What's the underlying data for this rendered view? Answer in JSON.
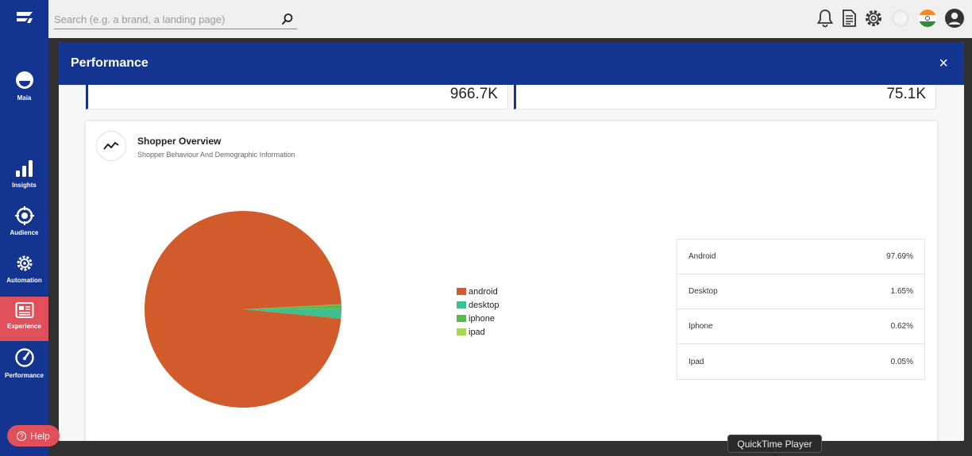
{
  "search": {
    "placeholder": "Search (e.g. a brand, a landing page)"
  },
  "sidebar": {
    "items": [
      {
        "label": "Maia",
        "icon": "maia-icon"
      },
      {
        "label": "Insights",
        "icon": "bar-chart-icon"
      },
      {
        "label": "Audience",
        "icon": "target-icon"
      },
      {
        "label": "Automation",
        "icon": "gear-icon"
      },
      {
        "label": "Experience",
        "icon": "layout-icon",
        "active": true
      },
      {
        "label": "Performance",
        "icon": "gauge-icon"
      }
    ]
  },
  "help": {
    "label": "Help"
  },
  "modal": {
    "title": "Performance",
    "close": "×",
    "stats": [
      "966.7K",
      "75.1K"
    ],
    "overview": {
      "title": "Shopper Overview",
      "subtitle": "Shopper Behaviour And Demographic Information"
    },
    "legend": [
      {
        "label": "android",
        "color": "#d15b2a"
      },
      {
        "label": "desktop",
        "color": "#3fbf8f"
      },
      {
        "label": "iphone",
        "color": "#58bb4d"
      },
      {
        "label": "ipad",
        "color": "#a9d657"
      }
    ],
    "table": [
      {
        "label": "Android",
        "value": "97.69%"
      },
      {
        "label": "Desktop",
        "value": "1.65%"
      },
      {
        "label": "Iphone",
        "value": "0.62%"
      },
      {
        "label": "Ipad",
        "value": "0.05%"
      }
    ]
  },
  "chart_data": {
    "type": "pie",
    "categories": [
      "android",
      "desktop",
      "iphone",
      "ipad"
    ],
    "values": [
      97.69,
      1.65,
      0.62,
      0.05
    ],
    "colors": [
      "#d15b2a",
      "#3fbf8f",
      "#58bb4d",
      "#a9d657"
    ],
    "legend": "right"
  },
  "tooltip": {
    "text": "QuickTime Player"
  },
  "colors": {
    "brand": "#13348f",
    "accent": "#e0505a"
  }
}
